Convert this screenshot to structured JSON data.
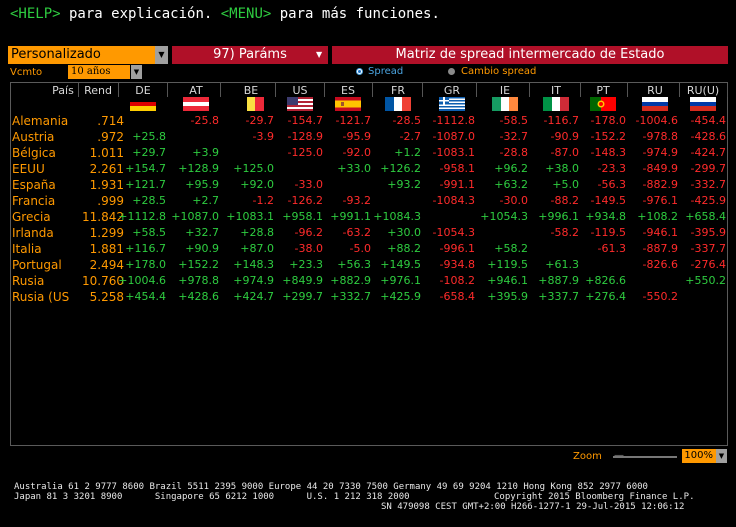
{
  "help_bar": {
    "help_key": "<HELP>",
    "help_text": " para explicación. ",
    "menu_key": "<MENU>",
    "menu_text": " para más funciones."
  },
  "toolbar": {
    "selector_value": "Personalizado",
    "params_label": "97) Paráms",
    "matrix_title": "Matriz de spread intermercado de Estado",
    "vcmto_label": "Vcmto",
    "vcmto_value": "10 años",
    "radio_spread": "Spread",
    "radio_change": "Cambio spread",
    "selected_mode": "Spread"
  },
  "columns": {
    "country_header": "País",
    "rend_header": "Rend",
    "codes": [
      "DE",
      "AT",
      "BE",
      "US",
      "ES",
      "FR",
      "GR",
      "IE",
      "IT",
      "PT",
      "RU",
      "RU(U)"
    ],
    "flag_icons": [
      "germany-flag-icon",
      "austria-flag-icon",
      "belgium-flag-icon",
      "usa-flag-icon",
      "spain-flag-icon",
      "france-flag-icon",
      "greece-flag-icon",
      "ireland-flag-icon",
      "italy-flag-icon",
      "portugal-flag-icon",
      "russia-flag-icon",
      "russia-flag-icon"
    ]
  },
  "rows": [
    {
      "country": "Alemania",
      "rend": ".714",
      "cells": [
        "",
        "-25.8",
        "-29.7",
        "-154.7",
        "-121.7",
        "-28.5",
        "-1112.8",
        "-58.5",
        "-116.7",
        "-178.0",
        "-1004.6",
        "-454.4"
      ]
    },
    {
      "country": "Austria",
      "rend": ".972",
      "cells": [
        "+25.8",
        "",
        "-3.9",
        "-128.9",
        "-95.9",
        "-2.7",
        "-1087.0",
        "-32.7",
        "-90.9",
        "-152.2",
        "-978.8",
        "-428.6"
      ]
    },
    {
      "country": "Bélgica",
      "rend": "1.011",
      "cells": [
        "+29.7",
        "+3.9",
        "",
        "-125.0",
        "-92.0",
        "+1.2",
        "-1083.1",
        "-28.8",
        "-87.0",
        "-148.3",
        "-974.9",
        "-424.7"
      ]
    },
    {
      "country": "EEUU",
      "rend": "2.261",
      "cells": [
        "+154.7",
        "+128.9",
        "+125.0",
        "",
        "+33.0",
        "+126.2",
        "-958.1",
        "+96.2",
        "+38.0",
        "-23.3",
        "-849.9",
        "-299.7"
      ]
    },
    {
      "country": "España",
      "rend": "1.931",
      "cells": [
        "+121.7",
        "+95.9",
        "+92.0",
        "-33.0",
        "",
        "+93.2",
        "-991.1",
        "+63.2",
        "+5.0",
        "-56.3",
        "-882.9",
        "-332.7"
      ]
    },
    {
      "country": "Francia",
      "rend": ".999",
      "cells": [
        "+28.5",
        "+2.7",
        "-1.2",
        "-126.2",
        "-93.2",
        "",
        "-1084.3",
        "-30.0",
        "-88.2",
        "-149.5",
        "-976.1",
        "-425.9"
      ]
    },
    {
      "country": "Grecia",
      "rend": "11.842",
      "cells": [
        "+1112.8",
        "+1087.0",
        "+1083.1",
        "+958.1",
        "+991.1",
        "+1084.3",
        "",
        "+1054.3",
        "+996.1",
        "+934.8",
        "+108.2",
        "+658.4"
      ]
    },
    {
      "country": "Irlanda",
      "rend": "1.299",
      "cells": [
        "+58.5",
        "+32.7",
        "+28.8",
        "-96.2",
        "-63.2",
        "+30.0",
        "-1054.3",
        "",
        "-58.2",
        "-119.5",
        "-946.1",
        "-395.9"
      ]
    },
    {
      "country": "Italia",
      "rend": "1.881",
      "cells": [
        "+116.7",
        "+90.9",
        "+87.0",
        "-38.0",
        "-5.0",
        "+88.2",
        "-996.1",
        "+58.2",
        "",
        "-61.3",
        "-887.9",
        "-337.7"
      ]
    },
    {
      "country": "Portugal",
      "rend": "2.494",
      "cells": [
        "+178.0",
        "+152.2",
        "+148.3",
        "+23.3",
        "+56.3",
        "+149.5",
        "-934.8",
        "+119.5",
        "+61.3",
        "",
        "-826.6",
        "-276.4"
      ]
    },
    {
      "country": "Rusia",
      "rend": "10.760",
      "cells": [
        "+1004.6",
        "+978.8",
        "+974.9",
        "+849.9",
        "+882.9",
        "+976.1",
        "-108.2",
        "+946.1",
        "+887.9",
        "+826.6",
        "",
        "+550.2"
      ]
    },
    {
      "country": "Rusia (US",
      "rend": "5.258",
      "cells": [
        "+454.4",
        "+428.6",
        "+424.7",
        "+299.7",
        "+332.7",
        "+425.9",
        "-658.4",
        "+395.9",
        "+337.7",
        "+276.4",
        "-550.2",
        ""
      ]
    }
  ],
  "zoom": {
    "label": "Zoom",
    "value": "100%"
  },
  "footer": {
    "line1": "Australia 61 2 9777 8600 Brazil 5511 2395 9000 Europe 44 20 7330 7500 Germany 49 69 9204 1210 Hong Kong 852 2977 6000",
    "line2_left": "Japan 81 3 3201 8900      Singapore 65 6212 1000      U.S. 1 212 318 2000",
    "line2_right": "Copyright 2015 Bloomberg Finance L.P.",
    "line3": "SN 479098 CEST GMT+2:00 H266-1277-1 29-Jul-2015 12:06:12"
  },
  "colors": {
    "orange": "#ff9900",
    "red_bar": "#b01028",
    "positive": "#2ecc40",
    "negative": "#ff2b2b"
  }
}
